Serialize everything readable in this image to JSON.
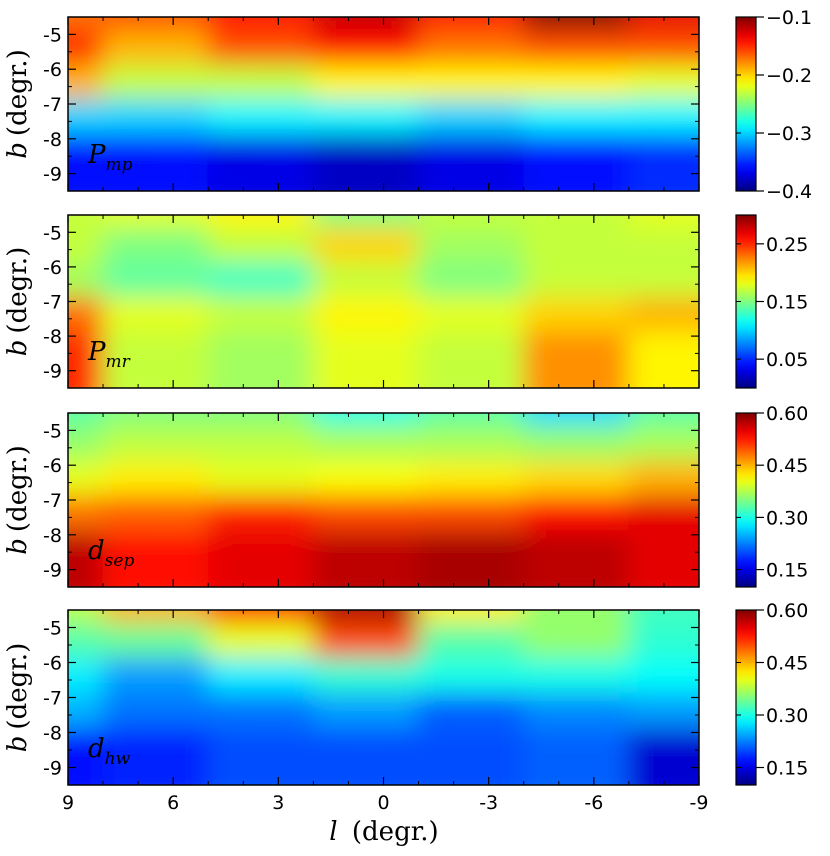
{
  "chart_data": {
    "type": "heatmap",
    "colormap": "jet",
    "xlabel": "l (degr.)",
    "xlabel_var": "l",
    "xlabel_unit": "(degr.)",
    "xlim": [
      9,
      -9
    ],
    "x_ticks": [
      "9",
      "6",
      "3",
      "0",
      "-3",
      "-6",
      "-9"
    ],
    "x_tick_values": [
      9,
      6,
      3,
      0,
      -3,
      -6,
      -9
    ],
    "panels": [
      {
        "name": "pmp",
        "label_main": "P",
        "label_sub": "mp",
        "ylabel_var": "b",
        "ylabel_unit": "(degr.)",
        "ylim": [
          -9.5,
          -4.5
        ],
        "y_ticks": [
          "-5",
          "-6",
          "-7",
          "-8",
          "-9"
        ],
        "y_tick_values": [
          -5,
          -6,
          -7,
          -8,
          -9
        ],
        "colorbar_range": [
          -0.4,
          -0.1
        ],
        "colorbar_ticks": [
          "−0.1",
          "−0.2",
          "−0.3",
          "−0.4"
        ],
        "colorbar_tick_values": [
          -0.1,
          -0.2,
          -0.3,
          -0.4
        ],
        "l": [
          9,
          6,
          3,
          0,
          -3,
          -6,
          -9
        ],
        "b": [
          -5,
          -6,
          -7,
          -8,
          -9
        ],
        "values": [
          [
            -0.17,
            -0.16,
            -0.14,
            -0.12,
            -0.14,
            -0.1,
            -0.13
          ],
          [
            -0.15,
            -0.19,
            -0.16,
            -0.14,
            -0.17,
            -0.16,
            -0.16
          ],
          [
            -0.19,
            -0.23,
            -0.23,
            -0.21,
            -0.21,
            -0.21,
            -0.22
          ],
          [
            -0.3,
            -0.3,
            -0.29,
            -0.29,
            -0.3,
            -0.29,
            -0.29
          ],
          [
            -0.36,
            -0.36,
            -0.37,
            -0.38,
            -0.37,
            -0.36,
            -0.35
          ]
        ]
      },
      {
        "name": "pmr",
        "label_main": "P",
        "label_sub": "mr",
        "ylabel_var": "b",
        "ylabel_unit": "(degr.)",
        "ylim": [
          -9.5,
          -4.5
        ],
        "y_ticks": [
          "-5",
          "-6",
          "-7",
          "-8",
          "-9"
        ],
        "y_tick_values": [
          -5,
          -6,
          -7,
          -8,
          -9
        ],
        "colorbar_range": [
          0.0,
          0.3
        ],
        "colorbar_ticks": [
          "0.25",
          "0.15",
          "0.05"
        ],
        "colorbar_tick_values": [
          0.25,
          0.15,
          0.05
        ],
        "l": [
          9,
          6,
          3,
          0,
          -3,
          -6,
          -9
        ],
        "b": [
          -5,
          -6,
          -7,
          -8,
          -9
        ],
        "values": [
          [
            0.17,
            0.18,
            0.19,
            0.15,
            0.17,
            0.17,
            0.18
          ],
          [
            0.17,
            0.15,
            0.17,
            0.2,
            0.16,
            0.17,
            0.17
          ],
          [
            0.16,
            0.14,
            0.13,
            0.17,
            0.15,
            0.17,
            0.17
          ],
          [
            0.23,
            0.18,
            0.17,
            0.19,
            0.18,
            0.2,
            0.21
          ],
          [
            0.25,
            0.17,
            0.16,
            0.18,
            0.17,
            0.22,
            0.19
          ]
        ]
      },
      {
        "name": "dsep",
        "label_main": "d",
        "label_sub": "sep",
        "ylabel_var": "b",
        "ylabel_unit": "(degr.)",
        "ylim": [
          -9.5,
          -4.5
        ],
        "y_ticks": [
          "-5",
          "-6",
          "-7",
          "-8",
          "-9"
        ],
        "y_tick_values": [
          -5,
          -6,
          -7,
          -8,
          -9
        ],
        "colorbar_range": [
          0.1,
          0.6
        ],
        "colorbar_ticks": [
          "0.60",
          "0.45",
          "0.30",
          "0.15"
        ],
        "colorbar_tick_values": [
          0.6,
          0.45,
          0.3,
          0.15
        ],
        "l": [
          9,
          6,
          3,
          0,
          -3,
          -6,
          -9
        ],
        "b": [
          -5,
          -6,
          -7,
          -8,
          -9
        ],
        "values": [
          [
            0.33,
            0.35,
            0.35,
            0.3,
            0.33,
            0.27,
            0.33
          ],
          [
            0.36,
            0.38,
            0.38,
            0.37,
            0.37,
            0.36,
            0.37
          ],
          [
            0.4,
            0.42,
            0.4,
            0.41,
            0.42,
            0.43,
            0.45
          ],
          [
            0.48,
            0.49,
            0.52,
            0.5,
            0.5,
            0.53,
            0.55
          ],
          [
            0.57,
            0.53,
            0.55,
            0.57,
            0.58,
            0.57,
            0.55
          ]
        ]
      },
      {
        "name": "dhw",
        "label_main": "d",
        "label_sub": "hw",
        "ylabel_var": "b",
        "ylabel_unit": "(degr.)",
        "ylim": [
          -9.5,
          -4.5
        ],
        "y_ticks": [
          "-5",
          "-6",
          "-7",
          "-8",
          "-9"
        ],
        "y_tick_values": [
          -5,
          -6,
          -7,
          -8,
          -9
        ],
        "colorbar_range": [
          0.1,
          0.6
        ],
        "colorbar_ticks": [
          "0.60",
          "0.45",
          "0.30",
          "0.15"
        ],
        "colorbar_tick_values": [
          0.6,
          0.45,
          0.3,
          0.15
        ],
        "l": [
          9,
          6,
          3,
          0,
          -3,
          -6,
          -9
        ],
        "b": [
          -5,
          -6,
          -7,
          -8,
          -9
        ],
        "values": [
          [
            0.38,
            0.45,
            0.53,
            0.58,
            0.42,
            0.36,
            0.32
          ],
          [
            0.33,
            0.34,
            0.4,
            0.5,
            0.33,
            0.36,
            0.31
          ],
          [
            0.28,
            0.24,
            0.28,
            0.31,
            0.3,
            0.3,
            0.29
          ],
          [
            0.25,
            0.22,
            0.22,
            0.24,
            0.21,
            0.23,
            0.24
          ],
          [
            0.17,
            0.18,
            0.2,
            0.2,
            0.2,
            0.21,
            0.14
          ]
        ]
      }
    ]
  }
}
